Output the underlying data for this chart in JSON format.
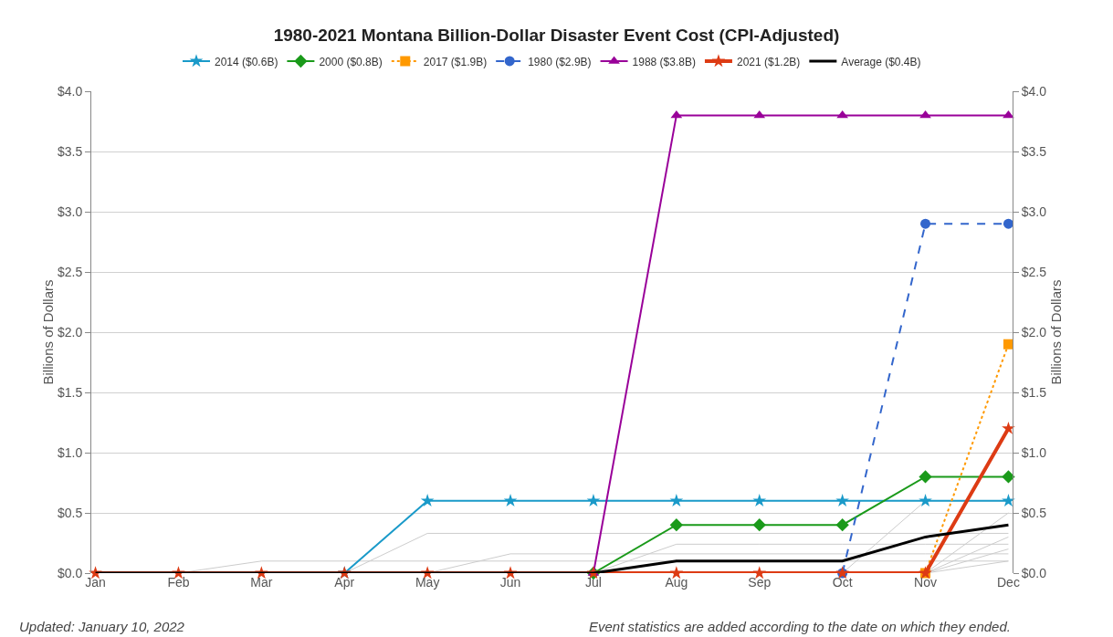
{
  "chart_data": {
    "type": "line",
    "title": "1980-2021 Montana Billion-Dollar Disaster Event Cost (CPI-Adjusted)",
    "ylabel": "Billions of Dollars",
    "y2label": "Billions of Dollars",
    "categories": [
      "Jan",
      "Feb",
      "Mar",
      "Apr",
      "May",
      "Jun",
      "Jul",
      "Aug",
      "Sep",
      "Oct",
      "Nov",
      "Dec"
    ],
    "series": [
      {
        "color": "#cccccc",
        "marker": "none",
        "values": [
          null,
          0,
          0.1,
          0.1,
          0.1,
          0.1,
          0.1,
          0.1,
          0.1,
          0.1,
          0.1,
          0.1
        ]
      },
      {
        "color": "#cccccc",
        "marker": "none",
        "values": [
          null,
          null,
          null,
          0,
          0.33,
          0.33,
          0.33,
          0.33,
          0.33,
          0.33,
          0.33,
          0.33
        ]
      },
      {
        "color": "#cccccc",
        "marker": "none",
        "values": [
          null,
          null,
          null,
          null,
          0,
          0.16,
          0.16,
          0.16,
          0.16,
          0.16,
          0.16,
          0.16
        ]
      },
      {
        "color": "#cccccc",
        "marker": "none",
        "values": [
          null,
          null,
          null,
          null,
          null,
          null,
          0,
          0.24,
          0.24,
          0.24,
          0.24,
          0.24
        ]
      },
      {
        "color": "#cccccc",
        "marker": "none",
        "values": [
          null,
          null,
          null,
          null,
          null,
          null,
          null,
          null,
          null,
          0,
          0.6,
          0.6
        ]
      },
      {
        "color": "#cccccc",
        "marker": "none",
        "values": [
          null,
          null,
          null,
          null,
          null,
          null,
          null,
          null,
          null,
          null,
          0,
          0.5
        ]
      },
      {
        "color": "#cccccc",
        "marker": "none",
        "values": [
          null,
          null,
          null,
          null,
          null,
          null,
          null,
          null,
          null,
          null,
          0,
          0.3
        ]
      },
      {
        "color": "#cccccc",
        "marker": "none",
        "values": [
          null,
          null,
          null,
          null,
          null,
          null,
          null,
          null,
          null,
          null,
          0,
          0.2
        ]
      },
      {
        "color": "#cccccc",
        "marker": "none",
        "values": [
          null,
          null,
          null,
          null,
          null,
          null,
          null,
          null,
          null,
          null,
          0,
          0.1
        ]
      },
      {
        "name": "2014 ($0.6B)",
        "color": "#1a9ac9",
        "marker": "star",
        "line_style": "solid",
        "values": [
          null,
          null,
          null,
          0,
          0.6,
          0.6,
          0.6,
          0.6,
          0.6,
          0.6,
          0.6,
          0.6
        ]
      },
      {
        "name": "2000 ($0.8B)",
        "color": "#1a9a1a",
        "marker": "diamond",
        "line_style": "solid",
        "values": [
          null,
          null,
          null,
          null,
          null,
          null,
          0,
          0.4,
          0.4,
          0.4,
          0.8,
          0.8
        ]
      },
      {
        "name": "2017 ($1.9B)",
        "color": "#ff9900",
        "marker": "square",
        "line_style": "dotted",
        "values": [
          null,
          null,
          null,
          null,
          null,
          null,
          null,
          null,
          null,
          null,
          0,
          1.9
        ]
      },
      {
        "name": "1980 ($2.9B)",
        "color": "#3366cc",
        "marker": "circle",
        "line_style": "dashed",
        "values": [
          null,
          null,
          null,
          null,
          null,
          null,
          null,
          null,
          null,
          0,
          2.9,
          2.9
        ]
      },
      {
        "name": "1988 ($3.8B)",
        "color": "#990099",
        "marker": "triangle",
        "line_style": "solid",
        "values": [
          null,
          null,
          null,
          null,
          null,
          null,
          0,
          3.8,
          3.8,
          3.8,
          3.8,
          3.8
        ]
      },
      {
        "name": "2021 ($1.2B)",
        "color": "#dd3b14",
        "marker": "star",
        "line_style": "solid",
        "values": [
          0,
          0,
          0,
          0,
          0,
          0,
          0,
          0,
          0,
          0,
          0,
          1.2
        ]
      },
      {
        "name": "Average ($0.4B)",
        "color": "#000000",
        "marker": "none",
        "line_style": "solid",
        "values": [
          0,
          0,
          0,
          0,
          0,
          0,
          0,
          0.1,
          0.1,
          0.1,
          0.3,
          0.4
        ]
      }
    ],
    "ylim": [
      0,
      4
    ],
    "yticks": [
      {
        "value": 0,
        "label": "$0.0"
      },
      {
        "value": 0.5,
        "label": "$0.5"
      },
      {
        "value": 1,
        "label": "$1.0"
      },
      {
        "value": 1.5,
        "label": "$1.5"
      },
      {
        "value": 2,
        "label": "$2.0"
      },
      {
        "value": 2.5,
        "label": "$2.5"
      },
      {
        "value": 3,
        "label": "$3.0"
      },
      {
        "value": 3.5,
        "label": "$3.5"
      },
      {
        "value": 4,
        "label": "$4.0"
      }
    ],
    "y2lim": [
      0,
      4
    ],
    "y2ticks": [
      {
        "value": 0,
        "label": "$0.0"
      },
      {
        "value": 0.5,
        "label": "$0.5"
      },
      {
        "value": 1,
        "label": "$1.0"
      },
      {
        "value": 1.5,
        "label": "$1.5"
      },
      {
        "value": 2,
        "label": "$2.0"
      },
      {
        "value": 2.5,
        "label": "$2.5"
      },
      {
        "value": 3,
        "label": "$3.0"
      },
      {
        "value": 3.5,
        "label": "$3.5"
      },
      {
        "value": 4,
        "label": "$4.0"
      }
    ],
    "grid": "y",
    "legend": "top",
    "annotations": [
      "Updated: January 10, 2022",
      "Event statistics are added according to the date on which they ended."
    ]
  }
}
